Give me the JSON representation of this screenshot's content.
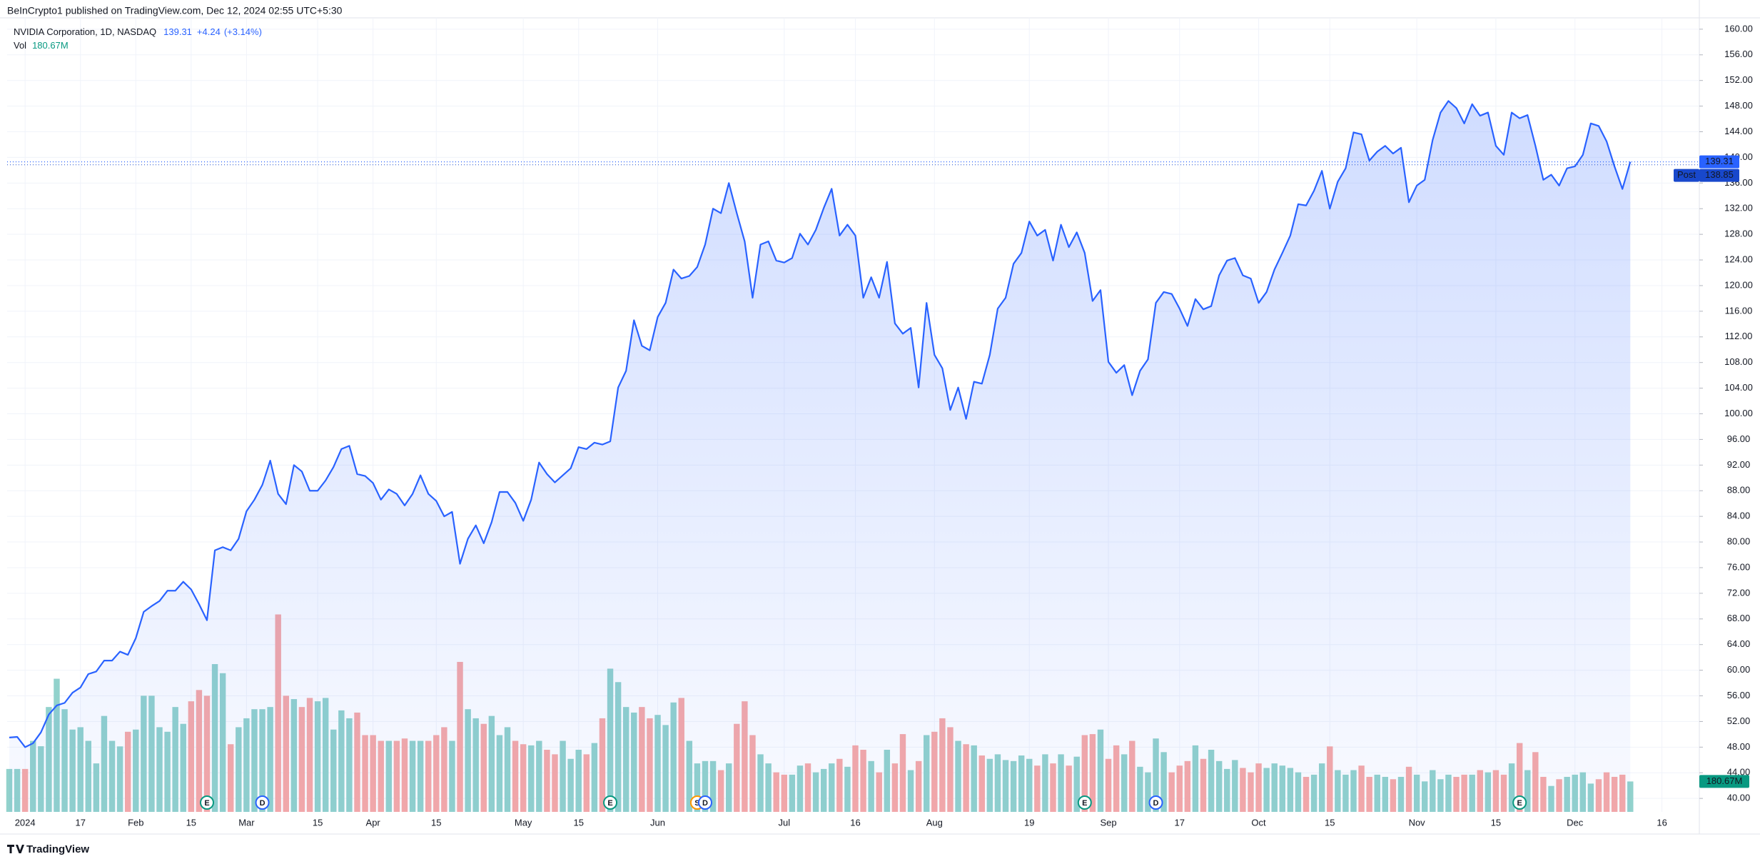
{
  "chart_data": {
    "type": "area",
    "published": "BeInCrypto1 published on TradingView.com, Dec 12, 2024 02:55 UTC+5:30",
    "footer": "TradingView",
    "categories": [
      null,
      null,
      "2024",
      null,
      null,
      null,
      null,
      null,
      null,
      "17",
      null,
      null,
      null,
      null,
      null,
      null,
      "Feb",
      null,
      null,
      null,
      null,
      null,
      null,
      "15",
      null,
      null,
      null,
      null,
      null,
      null,
      "Mar",
      null,
      null,
      null,
      null,
      null,
      null,
      null,
      null,
      "15",
      null,
      null,
      null,
      null,
      null,
      null,
      "Apr",
      null,
      null,
      null,
      null,
      null,
      null,
      null,
      "15",
      null,
      null,
      null,
      null,
      null,
      null,
      null,
      null,
      null,
      null,
      "May",
      null,
      null,
      null,
      null,
      null,
      null,
      "15",
      null,
      null,
      null,
      null,
      null,
      null,
      null,
      null,
      null,
      "Jun",
      null,
      null,
      null,
      null,
      null,
      null,
      null,
      null,
      null,
      null,
      null,
      null,
      null,
      null,
      null,
      "Jul",
      null,
      null,
      null,
      null,
      null,
      null,
      null,
      null,
      "16",
      null,
      null,
      null,
      null,
      null,
      null,
      null,
      null,
      null,
      "Aug",
      null,
      null,
      null,
      null,
      null,
      null,
      null,
      null,
      null,
      null,
      null,
      "19",
      null,
      null,
      null,
      null,
      null,
      null,
      null,
      null,
      null,
      "Sep",
      null,
      null,
      null,
      null,
      null,
      null,
      null,
      null,
      "17",
      null,
      null,
      null,
      null,
      null,
      null,
      null,
      null,
      null,
      "Oct",
      null,
      null,
      null,
      null,
      null,
      null,
      null,
      null,
      "15",
      null,
      null,
      null,
      null,
      null,
      null,
      null,
      null,
      null,
      null,
      "Nov",
      null,
      null,
      null,
      null,
      null,
      null,
      null,
      null,
      null,
      "15",
      null,
      null,
      null,
      null,
      null,
      null,
      null,
      null,
      null,
      "Dec",
      null,
      null,
      null,
      null,
      null,
      null,
      null,
      null,
      null,
      null,
      "16",
      null,
      null,
      null,
      null,
      null,
      null
    ],
    "series": [
      {
        "name": "NVIDIA Corporation, 1D, NASDAQ",
        "color": "#2962ff",
        "change": "+4.24",
        "change_pct": "(+3.14%)",
        "values": [
          49.5,
          49.6,
          48.0,
          48.6,
          50.3,
          53.1,
          54.5,
          54.9,
          56.5,
          57.3,
          59.4,
          59.8,
          61.5,
          61.5,
          62.9,
          62.4,
          65.0,
          69.1,
          70.0,
          70.8,
          72.4,
          72.4,
          73.8,
          72.6,
          70.3,
          67.8,
          78.7,
          79.2,
          78.7,
          80.5,
          84.8,
          86.6,
          88.9,
          92.7,
          87.5,
          85.9,
          92.0,
          91.0,
          88.0,
          88.0,
          89.6,
          91.7,
          94.5,
          95.0,
          90.6,
          90.3,
          89.2,
          86.6,
          88.2,
          87.5,
          85.7,
          87.5,
          90.4,
          87.5,
          86.4,
          84.0,
          84.7,
          76.6,
          80.5,
          82.6,
          79.8,
          83.1,
          87.8,
          87.8,
          86.1,
          83.3,
          86.6,
          92.4,
          90.6,
          89.3,
          90.4,
          91.5,
          94.8,
          94.5,
          95.5,
          95.2,
          95.7,
          104.1,
          106.7,
          114.6,
          110.6,
          109.9,
          115.1,
          117.3,
          122.5,
          121.1,
          121.5,
          122.9,
          126.4,
          132.0,
          131.3,
          136.0,
          131.3,
          126.9,
          118.1,
          126.4,
          126.9,
          123.9,
          123.6,
          124.3,
          128.1,
          126.4,
          128.7,
          132.1,
          135.1,
          127.8,
          129.5,
          127.8,
          118.1,
          121.3,
          118.1,
          123.7,
          114.1,
          112.5,
          113.4,
          104.1,
          117.3,
          109.2,
          107.1,
          100.6,
          104.1,
          99.2,
          105.0,
          104.7,
          109.2,
          116.4,
          118.1,
          123.4,
          125.1,
          130.0,
          127.8,
          128.7,
          123.9,
          129.5,
          126.0,
          128.3,
          125.1,
          117.6,
          119.3,
          108.1,
          106.4,
          107.6,
          102.9,
          106.7,
          108.5,
          117.3,
          119.0,
          118.7,
          116.4,
          113.7,
          117.9,
          116.3,
          116.8,
          121.6,
          123.9,
          124.3,
          121.6,
          121.1,
          117.3,
          119.0,
          122.5,
          125.1,
          127.8,
          132.7,
          132.5,
          134.8,
          137.9,
          132.0,
          136.2,
          138.3,
          143.9,
          143.6,
          139.5,
          140.9,
          141.8,
          140.6,
          141.5,
          133.0,
          135.6,
          136.5,
          142.7,
          147.0,
          148.8,
          147.7,
          145.3,
          148.3,
          146.5,
          147.0,
          141.8,
          140.4,
          147.0,
          146.1,
          146.6,
          141.8,
          136.5,
          137.3,
          135.6,
          138.3,
          138.6,
          140.4,
          145.3,
          144.9,
          142.5,
          138.6,
          135.07,
          139.31,
          null,
          null,
          null,
          null,
          null,
          null,
          null,
          null,
          null,
          null
        ]
      },
      {
        "name": "Vol",
        "type": "bar",
        "up_color": "#92d2cc",
        "down_color": "#f7a9a7",
        "label_color": "#089981",
        "last_label": "180.67M",
        "values": [
          255,
          255,
          255,
          422,
          390,
          623,
          791,
          610,
          489,
          503,
          422,
          288,
          570,
          422,
          389,
          476,
          489,
          690,
          690,
          503,
          476,
          623,
          523,
          657,
          724,
          690,
          878,
          824,
          402,
          503,
          556,
          610,
          610,
          623,
          1173,
          690,
          670,
          623,
          677,
          657,
          677,
          489,
          603,
          556,
          590,
          456,
          456,
          422,
          422,
          422,
          436,
          422,
          422,
          422,
          456,
          503,
          422,
          891,
          610,
          556,
          523,
          570,
          456,
          503,
          422,
          402,
          395,
          422,
          369,
          342,
          422,
          315,
          369,
          342,
          409,
          556,
          851,
          771,
          623,
          590,
          623,
          556,
          576,
          516,
          650,
          677,
          422,
          288,
          302,
          302,
          248,
          288,
          523,
          657,
          456,
          342,
          288,
          235,
          221,
          221,
          275,
          288,
          235,
          255,
          288,
          315,
          268,
          395,
          369,
          302,
          235,
          369,
          288,
          462,
          248,
          302,
          456,
          476,
          556,
          503,
          422,
          402,
          395,
          335,
          315,
          342,
          308,
          302,
          335,
          315,
          275,
          342,
          288,
          342,
          275,
          328,
          456,
          462,
          489,
          315,
          395,
          342,
          422,
          268,
          235,
          436,
          355,
          235,
          275,
          302,
          395,
          315,
          369,
          302,
          255,
          308,
          261,
          235,
          288,
          261,
          288,
          275,
          261,
          235,
          208,
          221,
          288,
          389,
          248,
          221,
          248,
          275,
          208,
          221,
          208,
          194,
          208,
          268,
          221,
          181,
          248,
          194,
          221,
          208,
          221,
          221,
          248,
          235,
          248,
          221,
          288,
          409,
          248,
          355,
          208,
          154,
          194,
          208,
          221,
          235,
          168,
          194,
          235,
          208,
          221,
          180.67,
          null,
          null,
          null,
          null,
          null,
          null,
          null,
          null,
          null,
          null
        ]
      }
    ],
    "events": [
      null,
      null,
      null,
      null,
      null,
      null,
      null,
      null,
      null,
      null,
      null,
      null,
      null,
      null,
      null,
      null,
      null,
      null,
      null,
      null,
      null,
      null,
      null,
      null,
      null,
      {
        "label": "E",
        "color": "#089981"
      },
      null,
      null,
      null,
      null,
      null,
      null,
      {
        "label": "D",
        "color": "#2962ff"
      },
      null,
      null,
      null,
      null,
      null,
      null,
      null,
      null,
      null,
      null,
      null,
      null,
      null,
      null,
      null,
      null,
      null,
      null,
      null,
      null,
      null,
      null,
      null,
      null,
      null,
      null,
      null,
      null,
      null,
      null,
      null,
      null,
      null,
      null,
      null,
      null,
      null,
      null,
      null,
      null,
      null,
      null,
      null,
      {
        "label": "E",
        "color": "#089981"
      },
      null,
      null,
      null,
      null,
      null,
      null,
      null,
      null,
      null,
      null,
      {
        "label": "S",
        "color": "#ff9800"
      },
      {
        "label": "D",
        "color": "#2962ff"
      },
      null,
      null,
      null,
      null,
      null,
      null,
      null,
      null,
      null,
      null,
      null,
      null,
      null,
      null,
      null,
      null,
      null,
      null,
      null,
      null,
      null,
      null,
      null,
      null,
      null,
      null,
      null,
      null,
      null,
      null,
      null,
      null,
      null,
      null,
      null,
      null,
      null,
      null,
      null,
      null,
      null,
      null,
      null,
      null,
      null,
      null,
      null,
      {
        "label": "E",
        "color": "#089981"
      },
      null,
      null,
      null,
      null,
      null,
      null,
      null,
      null,
      {
        "label": "D",
        "color": "#2962ff"
      },
      null,
      null,
      null,
      null,
      null,
      null,
      null,
      null,
      null,
      null,
      null,
      null,
      null,
      null,
      null,
      null,
      null,
      null,
      null,
      null,
      null,
      null,
      null,
      null,
      null,
      null,
      null,
      null,
      null,
      null,
      null,
      null,
      null,
      null,
      null,
      null,
      null,
      null,
      null,
      null,
      null,
      null,
      null,
      null,
      null,
      {
        "label": "E",
        "color": "#089981"
      },
      null,
      null,
      null,
      null,
      null,
      null,
      null,
      null,
      null,
      null,
      null,
      null,
      null,
      null,
      null,
      null,
      null,
      null,
      null,
      null,
      null,
      null,
      null,
      null
    ],
    "post_label": "Post",
    "post_value": 138.85,
    "ylim": [
      37.9,
      161.1
    ],
    "yticks": [
      {
        "value": 40,
        "label": "40.00"
      },
      {
        "value": 44,
        "label": "44.00"
      },
      {
        "value": 48,
        "label": "48.00"
      },
      {
        "value": 52,
        "label": "52.00"
      },
      {
        "value": 56,
        "label": "56.00"
      },
      {
        "value": 60,
        "label": "60.00"
      },
      {
        "value": 64,
        "label": "64.00"
      },
      {
        "value": 68,
        "label": "68.00"
      },
      {
        "value": 72,
        "label": "72.00"
      },
      {
        "value": 76,
        "label": "76.00"
      },
      {
        "value": 80,
        "label": "80.00"
      },
      {
        "value": 84,
        "label": "84.00"
      },
      {
        "value": 88,
        "label": "88.00"
      },
      {
        "value": 92,
        "label": "92.00"
      },
      {
        "value": 96,
        "label": "96.00"
      },
      {
        "value": 100,
        "label": "100.00"
      },
      {
        "value": 104,
        "label": "104.00"
      },
      {
        "value": 108,
        "label": "108.00"
      },
      {
        "value": 112,
        "label": "112.00"
      },
      {
        "value": 116,
        "label": "116.00"
      },
      {
        "value": 120,
        "label": "120.00"
      },
      {
        "value": 124,
        "label": "124.00"
      },
      {
        "value": 128,
        "label": "128.00"
      },
      {
        "value": 132,
        "label": "132.00"
      },
      {
        "value": 136,
        "label": "136.00"
      },
      {
        "value": 140,
        "label": "140.00"
      },
      {
        "value": 144,
        "label": "144.00"
      },
      {
        "value": 148,
        "label": "148.00"
      },
      {
        "value": 152,
        "label": "152.00"
      },
      {
        "value": 156,
        "label": "156.00"
      },
      {
        "value": 160,
        "label": "160.00"
      }
    ],
    "grid": true
  }
}
